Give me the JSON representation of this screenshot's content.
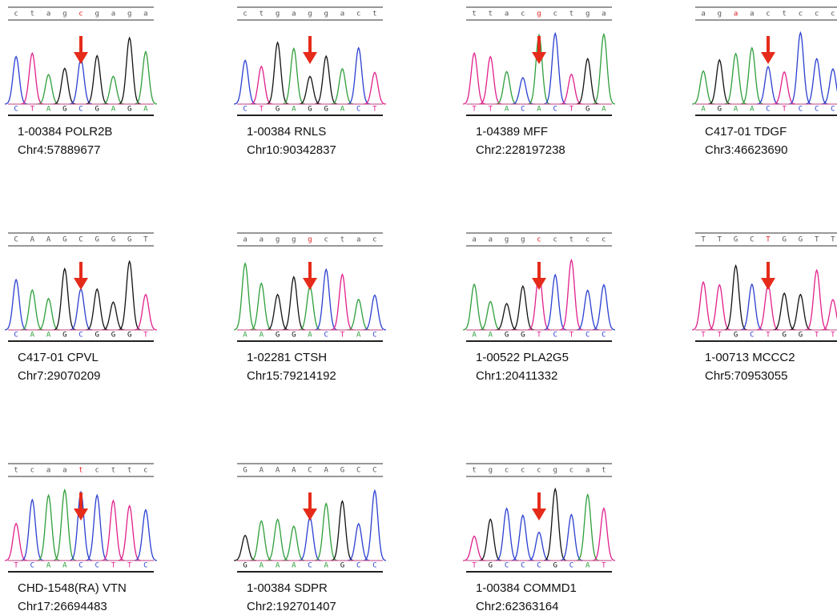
{
  "panels": [
    {
      "top": "ctagcgaga",
      "bottom": "CTAGCGAGA",
      "red": 4,
      "arrow": 4,
      "sample": "1-00384 POLR2B",
      "locus": "Chr4:57889677"
    },
    {
      "top": "ctgaggact",
      "bottom": "CTGAGGACT",
      "red": null,
      "arrow": 4,
      "sample": "1-00384 RNLS",
      "locus": "Chr10:90342837"
    },
    {
      "top": "ttacgctga",
      "bottom": "TTACACTGA",
      "red": 4,
      "arrow": 4,
      "sample": "1-04389 MFF",
      "locus": "Chr2:228197238"
    },
    {
      "top": "agaactccc",
      "bottom": "AGAACTCCC",
      "red": 2,
      "arrow": 4,
      "sample": "C417-01 TDGF",
      "locus": "Chr3:46623690"
    },
    {
      "top": "CAAGCGGGT",
      "bottom": "CAAGCGGGT",
      "red": null,
      "arrow": 4,
      "sample": "C417-01 CPVL",
      "locus": "Chr7:29070209"
    },
    {
      "top": "aagggctac",
      "bottom": "AAGGACTAC",
      "red": 4,
      "arrow": 4,
      "sample": "1-02281 CTSH",
      "locus": "Chr15:79214192"
    },
    {
      "top": "aaggcctcc",
      "bottom": "AAGGTCTCC",
      "red": 4,
      "arrow": 4,
      "sample": "1-00522 PLA2G5",
      "locus": "Chr1:20411332"
    },
    {
      "top": "TTGCTGGTT",
      "bottom": "TTGCTGGTT",
      "red": 4,
      "arrow": 4,
      "sample": "1-00713 MCCC2",
      "locus": "Chr5:70953055"
    },
    {
      "top": "tcaatcttc",
      "bottom": "TCAACCTTC",
      "red": 4,
      "arrow": 4,
      "sample": "CHD-1548(RA) VTN",
      "locus": "Chr17:26694483"
    },
    {
      "top": "GAAACAGCC",
      "bottom": "GAAACAGCC",
      "red": null,
      "arrow": 4,
      "sample": "1-00384 SDPR",
      "locus": "Chr2:192701407"
    },
    {
      "top": "tgcccgcat",
      "bottom": "TGCCCGCAT",
      "red": null,
      "arrow": 4,
      "sample": "1-00384 COMMD1",
      "locus": "Chr2:62363164"
    }
  ]
}
